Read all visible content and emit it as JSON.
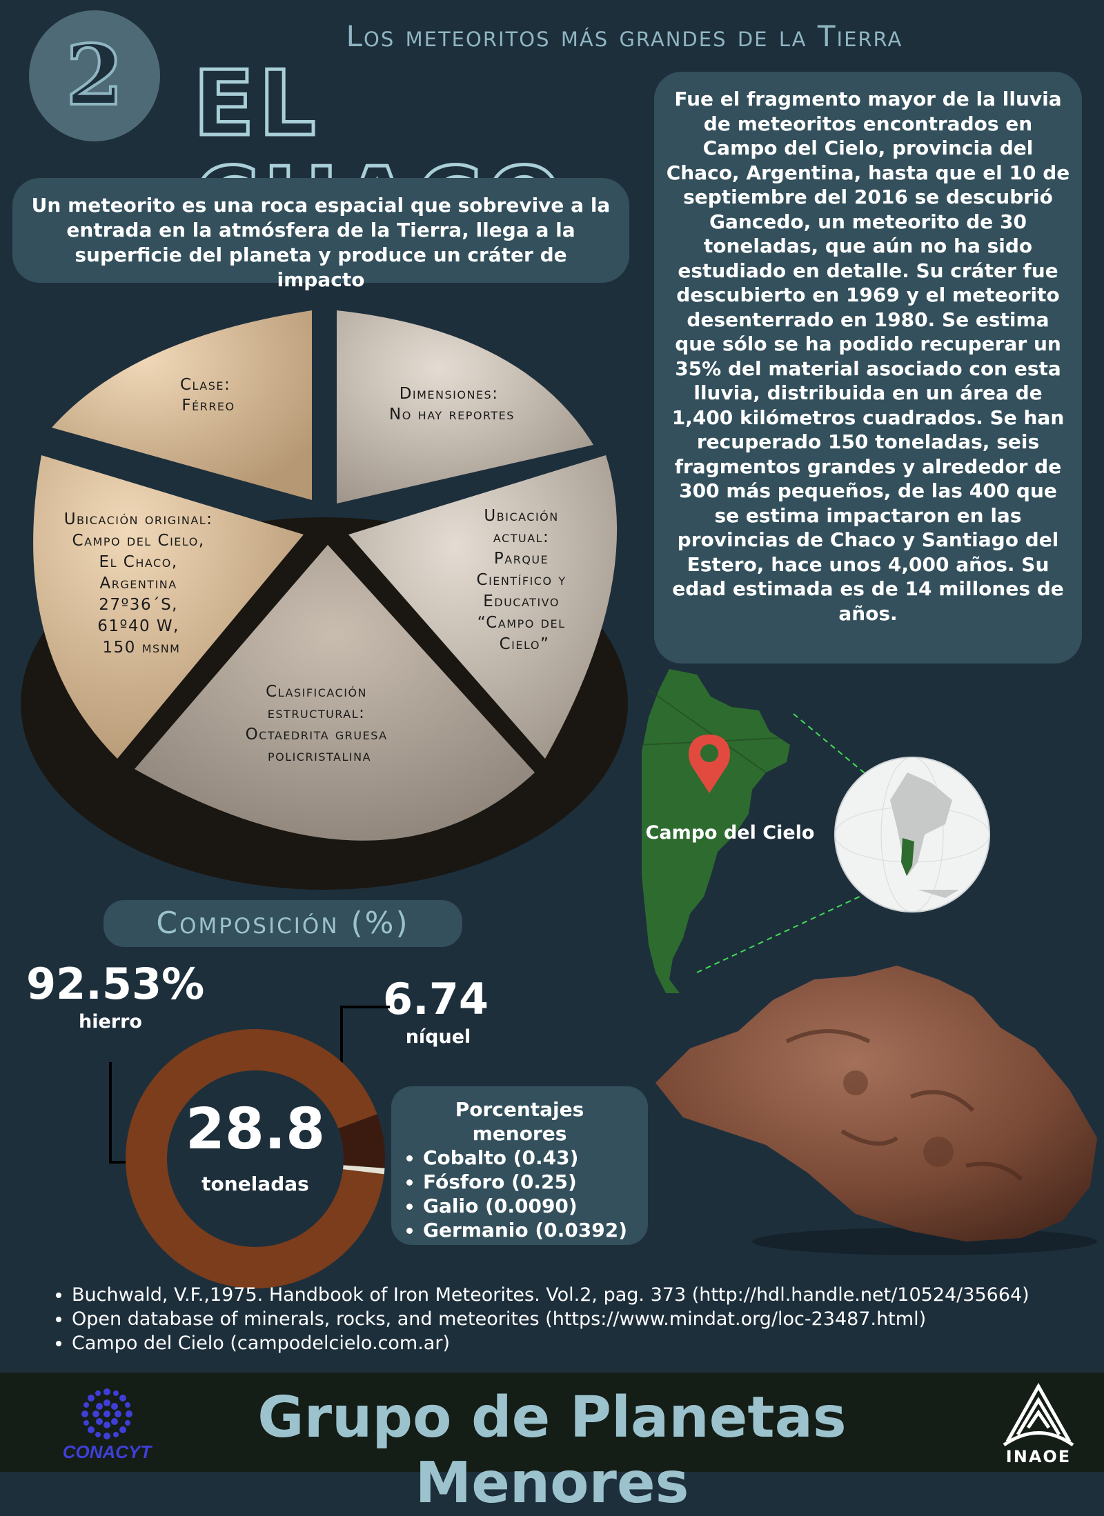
{
  "header": {
    "number": "2",
    "series_title": "Los meteoritos más grandes de la Tierra",
    "title": "EL CHACO"
  },
  "intro": "Un meteorito es una roca espacial que sobrevive a la entrada en la atmósfera de la Tierra, llega a la superficie del planeta y produce un cráter de impacto",
  "description": "Fue el fragmento mayor de la lluvia de meteoritos encontrados en Campo del Cielo, provincia del Chaco, Argentina, hasta  que el 10 de septiembre del 2016 se descubrió Gancedo, un meteorito de 30 toneladas, que aún no ha sido estudiado en detalle. Su cráter fue descubierto en 1969 y el meteorito desenterrado en 1980. Se estima que sólo se ha podido recuperar un 35% del material asociado con esta lluvia, distribuida en un área de 1,400 kilómetros cuadrados. Se han recuperado 150 toneladas, seis fragmentos grandes y  alrededor de 300 más pequeños, de las 400 que se estima impactaron en las provincias de Chaco y Santiago del Estero, hace unos 4,000 años. Su edad estimada es de 14 millones de años.",
  "pie": {
    "clase": [
      "Clase:",
      "Férreo"
    ],
    "dimensiones": [
      "Dimensiones:",
      "No hay reportes"
    ],
    "ubicacion_actual": [
      "Ubicación",
      "actual:",
      "Parque",
      "Científico y",
      "Educativo",
      "“Campo del",
      "Cielo”"
    ],
    "clasificacion": [
      "Clasificación",
      "estructural:",
      "Octaedrita  gruesa",
      "policristalina"
    ],
    "ubicacion_original": [
      "Ubicación original:",
      "Campo del Cielo,",
      "El Chaco,",
      "Argentina",
      "27º36´S,",
      "61º40 W,",
      "150 msnm"
    ]
  },
  "map": {
    "label": "Campo del Cielo",
    "colors": {
      "land": "#2e6b2f",
      "pin": "#e24a3f",
      "globe": "#f1f2f2"
    }
  },
  "composition": {
    "title": "Composición (%)",
    "iron_value": "92.53%",
    "iron_label": "hierro",
    "nickel_value": "6.74",
    "nickel_label": "níquel",
    "mass_value": "28.8",
    "mass_label": "toneladas",
    "minor_title": "Porcentajes menores",
    "minor_items": [
      "Cobalto (0.43)",
      "Fósforo (0.25)",
      "Galio (0.0090)",
      "Germanio (0.0392)"
    ],
    "colors": {
      "iron": "#7b3d1b",
      "nickel": "#3b1b10",
      "other": "#e5e2d5"
    }
  },
  "chart_data": {
    "type": "pie",
    "categories": [
      "hierro",
      "níquel",
      "other"
    ],
    "values": [
      92.53,
      6.74,
      0.73
    ]
  },
  "references": [
    "Buchwald, V.F.,1975. Handbook of Iron Meteorites. Vol.2, pag. 373 (http://hdl.handle.net/10524/35664)",
    "Open database of minerals, rocks, and meteorites (https://www.mindat.org/loc-23487.html)",
    "Campo del Cielo (campodelcielo.com.ar)"
  ],
  "footer": {
    "title": "Grupo de Planetas Menores",
    "left_logo": "CONACYT",
    "right_logo": "INAOE"
  }
}
